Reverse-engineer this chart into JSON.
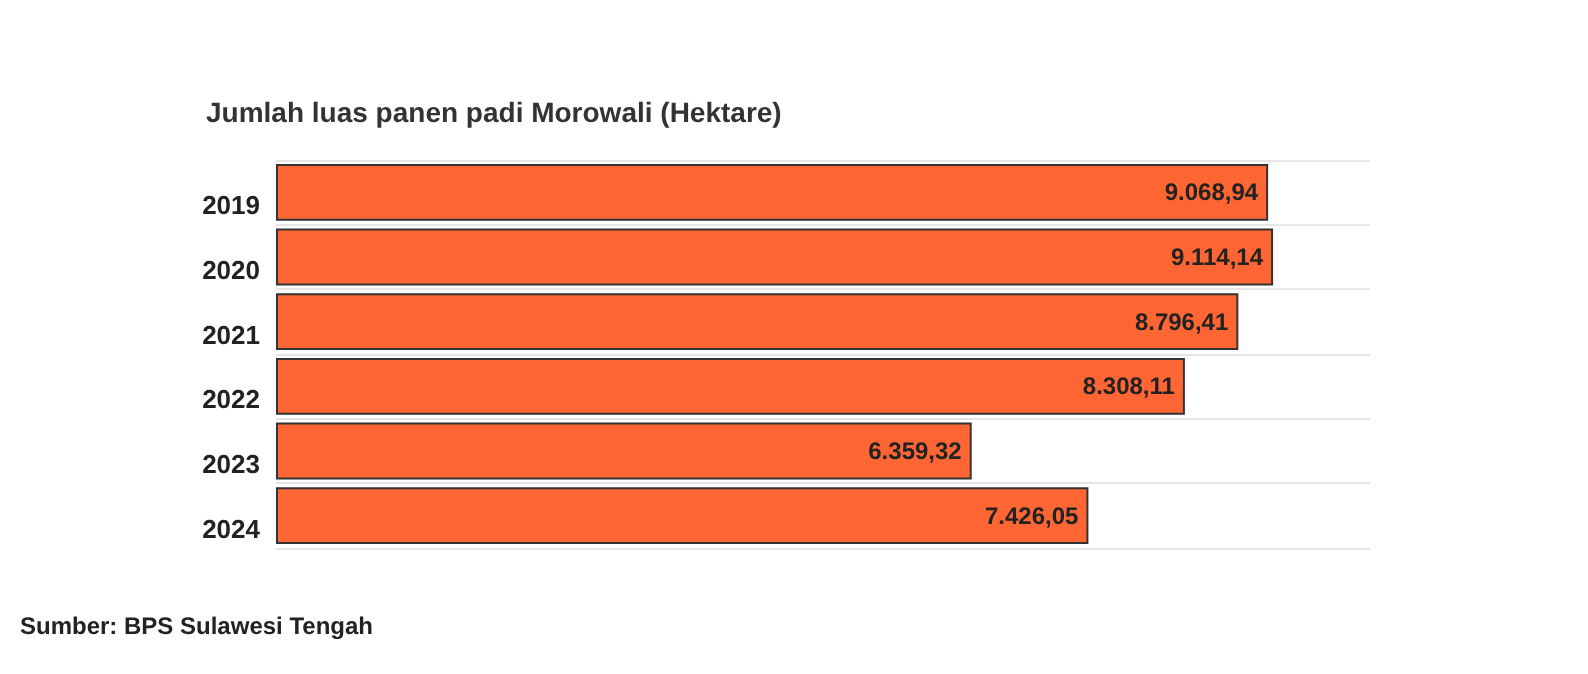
{
  "chart_data": {
    "type": "bar",
    "orientation": "horizontal",
    "title": "Jumlah luas panen padi Morowali (Hektare)",
    "categories": [
      "2019",
      "2020",
      "2021",
      "2022",
      "2023",
      "2024"
    ],
    "values": [
      9068.94,
      9114.14,
      8796.41,
      8308.11,
      6359.32,
      7426.05
    ],
    "value_labels": [
      "9.068,94",
      "9.114,14",
      "8.796,41",
      "8.308,11",
      "6.359,32",
      "7.426,05"
    ],
    "color": "#ff6633",
    "xlim": [
      0,
      10000
    ],
    "tick_labels": "y",
    "grid": "y",
    "annotations": [
      "Sumber: BPS Sulawesi Tengah"
    ]
  }
}
